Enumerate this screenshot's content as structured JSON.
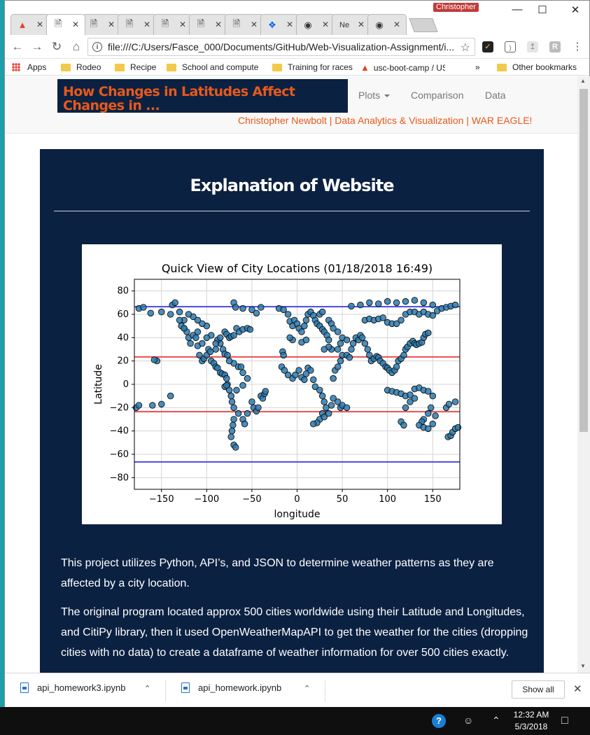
{
  "browser": {
    "user_name": "Christopher",
    "tabs": [
      {
        "icon": "gitlab-icon",
        "label": ""
      },
      {
        "icon": "page-icon",
        "label": ""
      },
      {
        "icon": "page-icon",
        "label": ""
      },
      {
        "icon": "page-icon",
        "label": ""
      },
      {
        "icon": "page-icon",
        "label": ""
      },
      {
        "icon": "page-icon",
        "label": ""
      },
      {
        "icon": "page-icon",
        "label": ""
      },
      {
        "icon": "dropbox-icon",
        "label": ""
      },
      {
        "icon": "github-icon",
        "label": ""
      },
      {
        "icon": "none",
        "label": "Ne"
      },
      {
        "icon": "github-icon",
        "label": ""
      }
    ],
    "url": "file:///C:/Users/Fasce_000/Documents/GitHub/Web-Visualization-Assignment/i...",
    "bookmarks": {
      "apps": "Apps",
      "items": [
        "Rodeo",
        "Recipe",
        "School and compute",
        "Training for races",
        "usc-boot-camp / US"
      ],
      "more": "»",
      "other": "Other bookmarks"
    }
  },
  "page": {
    "brand_title": "How Changes in Latitudes Affect Changes in ...",
    "nav": {
      "plots": "Plots",
      "comparison": "Comparison",
      "data": "Data"
    },
    "subtitle": "Christopher Newbolt | Data Analytics & Visualization | WAR EAGLE!",
    "heading": "Explanation of Website",
    "paragraph_1": "This project utilizes Python, API’s, and JSON to determine weather patterns as they are affected by a city location.",
    "paragraph_2": "The original program located approx 500 cities worldwide using their Latitude and Longitudes, and CitiPy library, then it used OpenWeatherMapAPI to get the weather for the cities (dropping cities with no data) to create a dataframe of weather information for over 500 cities exactly."
  },
  "chart_data": {
    "type": "scatter",
    "title": "Quick View of City Locations (01/18/2018 16:49)",
    "xlabel": "longitude",
    "ylabel": "Latitude",
    "xlim": [
      -180,
      180
    ],
    "ylim": [
      -90,
      90
    ],
    "xticks": [
      -150,
      -100,
      -50,
      0,
      50,
      100,
      150
    ],
    "yticks": [
      -80,
      -60,
      -40,
      -20,
      0,
      20,
      40,
      60,
      80
    ],
    "grid": true,
    "reference_lines": [
      {
        "y": 66.5,
        "color": "#2a2ae0"
      },
      {
        "y": 23.5,
        "color": "#e83030"
      },
      {
        "y": -23.5,
        "color": "#e83030"
      },
      {
        "y": -66.5,
        "color": "#2a2ae0"
      }
    ],
    "point_color": "#2a7ab0",
    "points": [
      [
        -175,
        65
      ],
      [
        -170,
        66
      ],
      [
        -162,
        61
      ],
      [
        -150,
        62
      ],
      [
        -138,
        68
      ],
      [
        -135,
        70
      ],
      [
        -130,
        62
      ],
      [
        -128,
        50
      ],
      [
        -125,
        48
      ],
      [
        -122,
        45
      ],
      [
        -120,
        40
      ],
      [
        -118,
        35
      ],
      [
        -115,
        42
      ],
      [
        -112,
        40
      ],
      [
        -110,
        33
      ],
      [
        -108,
        25
      ],
      [
        -105,
        20
      ],
      [
        -103,
        22
      ],
      [
        -100,
        25
      ],
      [
        -98,
        30
      ],
      [
        -96,
        28
      ],
      [
        -95,
        20
      ],
      [
        -92,
        18
      ],
      [
        -90,
        15
      ],
      [
        -88,
        14
      ],
      [
        -85,
        10
      ],
      [
        -83,
        9
      ],
      [
        -80,
        8
      ],
      [
        -78,
        5
      ],
      [
        -77,
        0
      ],
      [
        -75,
        -5
      ],
      [
        -73,
        -10
      ],
      [
        -72,
        -15
      ],
      [
        -70,
        -20
      ],
      [
        -70,
        -30
      ],
      [
        -71,
        -35
      ],
      [
        -72,
        -40
      ],
      [
        -73,
        -45
      ],
      [
        -70,
        -52
      ],
      [
        -68,
        -54
      ],
      [
        -65,
        -25
      ],
      [
        -60,
        -30
      ],
      [
        -58,
        -34
      ],
      [
        -55,
        -25
      ],
      [
        -50,
        -15
      ],
      [
        -48,
        -20
      ],
      [
        -45,
        -23
      ],
      [
        -43,
        -20
      ],
      [
        -40,
        -10
      ],
      [
        -38,
        -12
      ],
      [
        -36,
        -8
      ],
      [
        -35,
        -6
      ],
      [
        -80,
        45
      ],
      [
        -78,
        43
      ],
      [
        -75,
        40
      ],
      [
        -73,
        41
      ],
      [
        -70,
        42
      ],
      [
        -85,
        35
      ],
      [
        -82,
        30
      ],
      [
        -80,
        26
      ],
      [
        -90,
        30
      ],
      [
        -88,
        38
      ],
      [
        -95,
        42
      ],
      [
        -100,
        50
      ],
      [
        -105,
        52
      ],
      [
        -110,
        55
      ],
      [
        -115,
        58
      ],
      [
        -120,
        60
      ],
      [
        -125,
        55
      ],
      [
        -130,
        55
      ],
      [
        -140,
        60
      ],
      [
        -67,
        48
      ],
      [
        -64,
        45
      ],
      [
        -60,
        47
      ],
      [
        -55,
        48
      ],
      [
        -52,
        47
      ],
      [
        -70,
        70
      ],
      [
        -68,
        66
      ],
      [
        -60,
        65
      ],
      [
        -50,
        64
      ],
      [
        -45,
        61
      ],
      [
        -40,
        66
      ],
      [
        -20,
        65
      ],
      [
        -15,
        64
      ],
      [
        -10,
        60
      ],
      [
        -8,
        54
      ],
      [
        -5,
        50
      ],
      [
        -3,
        55
      ],
      [
        0,
        52
      ],
      [
        2,
        48
      ],
      [
        5,
        45
      ],
      [
        8,
        50
      ],
      [
        10,
        55
      ],
      [
        12,
        60
      ],
      [
        15,
        62
      ],
      [
        18,
        59
      ],
      [
        20,
        55
      ],
      [
        22,
        52
      ],
      [
        25,
        50
      ],
      [
        28,
        47
      ],
      [
        30,
        45
      ],
      [
        33,
        42
      ],
      [
        35,
        38
      ],
      [
        -16,
        28
      ],
      [
        -15,
        25
      ],
      [
        -17,
        15
      ],
      [
        -14,
        12
      ],
      [
        -10,
        8
      ],
      [
        -5,
        5
      ],
      [
        -2,
        8
      ],
      [
        2,
        12
      ],
      [
        5,
        6
      ],
      [
        8,
        4
      ],
      [
        10,
        9
      ],
      [
        12,
        14
      ],
      [
        15,
        12
      ],
      [
        18,
        4
      ],
      [
        20,
        -2
      ],
      [
        25,
        -5
      ],
      [
        28,
        -10
      ],
      [
        30,
        -15
      ],
      [
        32,
        -20
      ],
      [
        28,
        -25
      ],
      [
        25,
        -30
      ],
      [
        22,
        -33
      ],
      [
        18,
        -34
      ],
      [
        30,
        -28
      ],
      [
        35,
        -25
      ],
      [
        38,
        -18
      ],
      [
        40,
        -12
      ],
      [
        45,
        -15
      ],
      [
        48,
        -20
      ],
      [
        50,
        -18
      ],
      [
        55,
        -20
      ],
      [
        40,
        5
      ],
      [
        42,
        12
      ],
      [
        45,
        15
      ],
      [
        48,
        20
      ],
      [
        50,
        25
      ],
      [
        55,
        25
      ],
      [
        58,
        23
      ],
      [
        60,
        30
      ],
      [
        62,
        35
      ],
      [
        65,
        40
      ],
      [
        68,
        38
      ],
      [
        70,
        42
      ],
      [
        72,
        40
      ],
      [
        75,
        35
      ],
      [
        78,
        30
      ],
      [
        80,
        25
      ],
      [
        82,
        20
      ],
      [
        85,
        22
      ],
      [
        88,
        24
      ],
      [
        90,
        23
      ],
      [
        92,
        20
      ],
      [
        95,
        18
      ],
      [
        98,
        15
      ],
      [
        100,
        14
      ],
      [
        102,
        12
      ],
      [
        105,
        10
      ],
      [
        108,
        12
      ],
      [
        110,
        15
      ],
      [
        112,
        20
      ],
      [
        115,
        22
      ],
      [
        118,
        25
      ],
      [
        120,
        30
      ],
      [
        122,
        32
      ],
      [
        125,
        35
      ],
      [
        128,
        37
      ],
      [
        130,
        35
      ],
      [
        132,
        34
      ],
      [
        135,
        35
      ],
      [
        138,
        36
      ],
      [
        140,
        40
      ],
      [
        142,
        43
      ],
      [
        145,
        44
      ],
      [
        75,
        55
      ],
      [
        80,
        56
      ],
      [
        85,
        55
      ],
      [
        90,
        56
      ],
      [
        95,
        57
      ],
      [
        100,
        53
      ],
      [
        105,
        52
      ],
      [
        110,
        52
      ],
      [
        115,
        55
      ],
      [
        120,
        60
      ],
      [
        125,
        62
      ],
      [
        130,
        62
      ],
      [
        135,
        60
      ],
      [
        140,
        62
      ],
      [
        145,
        60
      ],
      [
        150,
        59
      ],
      [
        155,
        63
      ],
      [
        160,
        65
      ],
      [
        165,
        66
      ],
      [
        170,
        67
      ],
      [
        175,
        68
      ],
      [
        60,
        67
      ],
      [
        70,
        68
      ],
      [
        80,
        70
      ],
      [
        90,
        69
      ],
      [
        100,
        71
      ],
      [
        110,
        70
      ],
      [
        120,
        71
      ],
      [
        130,
        72
      ],
      [
        140,
        70
      ],
      [
        150,
        68
      ],
      [
        100,
        -5
      ],
      [
        105,
        -6
      ],
      [
        110,
        -7
      ],
      [
        115,
        -8
      ],
      [
        120,
        -10
      ],
      [
        125,
        -9
      ],
      [
        130,
        -4
      ],
      [
        135,
        -3
      ],
      [
        140,
        -5
      ],
      [
        145,
        -6
      ],
      [
        150,
        -10
      ],
      [
        148,
        -20
      ],
      [
        145,
        -25
      ],
      [
        140,
        -30
      ],
      [
        138,
        -32
      ],
      [
        135,
        -35
      ],
      [
        140,
        -37
      ],
      [
        145,
        -38
      ],
      [
        150,
        -34
      ],
      [
        153,
        -27
      ],
      [
        115,
        -32
      ],
      [
        118,
        -35
      ],
      [
        120,
        -20
      ],
      [
        125,
        -15
      ],
      [
        130,
        -12
      ],
      [
        167,
        -45
      ],
      [
        170,
        -44
      ],
      [
        172,
        -41
      ],
      [
        175,
        -38
      ],
      [
        178,
        -37
      ],
      [
        165,
        -20
      ],
      [
        168,
        -17
      ],
      [
        175,
        -15
      ],
      [
        -178,
        -20
      ],
      [
        -175,
        -18
      ],
      [
        -160,
        -18
      ],
      [
        -150,
        -17
      ],
      [
        -140,
        -10
      ],
      [
        -155,
        20
      ],
      [
        -158,
        21
      ],
      [
        -80,
        -2
      ],
      [
        -78,
        -1
      ],
      [
        -55,
        5
      ],
      [
        -60,
        10
      ],
      [
        -65,
        15
      ],
      [
        -70,
        18
      ],
      [
        -62,
        15
      ],
      [
        -75,
        20
      ],
      [
        -77,
        25
      ],
      [
        -125,
        48
      ],
      [
        -110,
        45
      ],
      [
        -100,
        40
      ],
      [
        -90,
        35
      ],
      [
        -85,
        40
      ],
      [
        -105,
        35
      ],
      [
        -60,
        -1
      ],
      [
        -67,
        -5
      ],
      [
        25,
        60
      ],
      [
        28,
        62
      ],
      [
        35,
        55
      ],
      [
        38,
        52
      ],
      [
        40,
        48
      ],
      [
        45,
        45
      ],
      [
        50,
        40
      ],
      [
        55,
        38
      ],
      [
        48,
        35
      ],
      [
        45,
        30
      ],
      [
        38,
        30
      ],
      [
        35,
        32
      ],
      [
        30,
        30
      ],
      [
        5,
        36
      ],
      [
        10,
        38
      ],
      [
        -5,
        38
      ],
      [
        -8,
        40
      ]
    ]
  },
  "downloads": [
    {
      "name": "api_homework3.ipynb"
    },
    {
      "name": "api_homework.ipynb"
    }
  ],
  "download_shelf": {
    "show_all": "Show all"
  },
  "taskbar": {
    "time": "12:32 AM",
    "date": "5/3/2018"
  }
}
